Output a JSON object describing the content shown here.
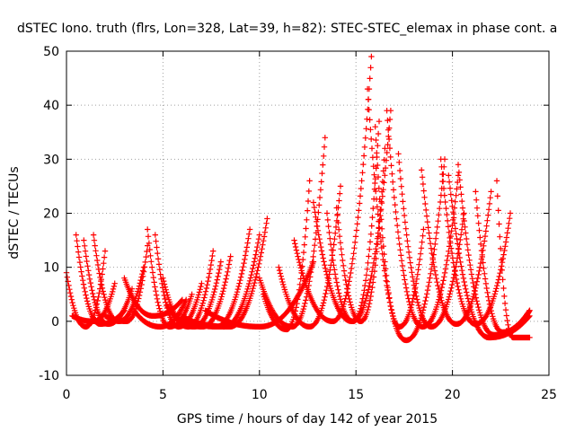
{
  "chart_data": {
    "type": "scatter",
    "title": "dSTEC Iono. truth (flrs, Lon=328, Lat=39, h=82): STEC-STEC_elemax in phase cont. a",
    "xlabel": "GPS time / hours of day 142 of year 2015",
    "ylabel": "dSTEC  / TECUs",
    "xlim": [
      0,
      25
    ],
    "ylim": [
      -10,
      50
    ],
    "xticks": [
      0,
      5,
      10,
      15,
      20,
      25
    ],
    "yticks": [
      -10,
      0,
      10,
      20,
      30,
      40,
      50
    ],
    "grid": true,
    "marker": "plus",
    "color": "#ff0000",
    "arcs": [
      {
        "start": 0.0,
        "end": 2.0,
        "start_value": 9,
        "end_value": 13,
        "min_value": -1
      },
      {
        "start": 0.5,
        "end": 3.0,
        "start_value": 16,
        "end_value": 2,
        "min_value": -0.5
      },
      {
        "start": 0.9,
        "end": 3.4,
        "start_value": 15,
        "end_value": 6,
        "min_value": -0.5
      },
      {
        "start": 1.4,
        "end": 4.0,
        "start_value": 16,
        "end_value": 10,
        "min_value": 0
      },
      {
        "start": 0.3,
        "end": 2.5,
        "start_value": 1,
        "end_value": 7,
        "min_value": 0
      },
      {
        "start": 2.0,
        "end": 4.2,
        "start_value": 1,
        "end_value": 14,
        "min_value": 0
      },
      {
        "start": 3.0,
        "end": 6.0,
        "start_value": 8,
        "end_value": 4,
        "min_value": 1
      },
      {
        "start": 4.2,
        "end": 6.5,
        "start_value": 17,
        "end_value": 5,
        "min_value": -1
      },
      {
        "start": 4.6,
        "end": 7.0,
        "start_value": 16,
        "end_value": 7,
        "min_value": -1
      },
      {
        "start": 3.5,
        "end": 6.2,
        "start_value": 2,
        "end_value": 4,
        "min_value": -1
      },
      {
        "start": 5.0,
        "end": 7.6,
        "start_value": 8,
        "end_value": 13,
        "min_value": -1
      },
      {
        "start": 5.2,
        "end": 8.0,
        "start_value": 3,
        "end_value": 11,
        "min_value": -1
      },
      {
        "start": 5.6,
        "end": 8.5,
        "start_value": 1,
        "end_value": 12,
        "min_value": -1
      },
      {
        "start": 6.0,
        "end": 9.5,
        "start_value": 1,
        "end_value": 17,
        "min_value": -1
      },
      {
        "start": 6.3,
        "end": 10.0,
        "start_value": 0,
        "end_value": 16,
        "min_value": -1
      },
      {
        "start": 6.5,
        "end": 10.4,
        "start_value": 0,
        "end_value": 19,
        "min_value": -1
      },
      {
        "start": 7.2,
        "end": 12.8,
        "start_value": 2,
        "end_value": 11,
        "min_value": -1
      },
      {
        "start": 10.0,
        "end": 13.4,
        "start_value": 8,
        "end_value": 34,
        "min_value": -1
      },
      {
        "start": 10.2,
        "end": 12.6,
        "start_value": 5,
        "end_value": 26,
        "min_value": -1.5
      },
      {
        "start": 11.0,
        "end": 14.2,
        "start_value": 10,
        "end_value": 25,
        "min_value": -1
      },
      {
        "start": 11.8,
        "end": 15.8,
        "start_value": 15,
        "end_value": 49,
        "min_value": 0
      },
      {
        "start": 12.8,
        "end": 16.8,
        "start_value": 22,
        "end_value": 39,
        "min_value": 0
      },
      {
        "start": 13.5,
        "end": 16.2,
        "start_value": 20,
        "end_value": 37,
        "min_value": 0
      },
      {
        "start": 14.0,
        "end": 16.5,
        "start_value": 21,
        "end_value": 32,
        "min_value": 0
      },
      {
        "start": 15.6,
        "end": 19.6,
        "start_value": 43,
        "end_value": 30,
        "min_value": -3.5
      },
      {
        "start": 16.0,
        "end": 18.5,
        "start_value": 36,
        "end_value": 17,
        "min_value": -1
      },
      {
        "start": 16.6,
        "end": 20.3,
        "start_value": 39,
        "end_value": 27,
        "min_value": -1
      },
      {
        "start": 17.2,
        "end": 20.6,
        "start_value": 31,
        "end_value": 20,
        "min_value": -1
      },
      {
        "start": 18.4,
        "end": 22.0,
        "start_value": 28,
        "end_value": 24,
        "min_value": -0.5
      },
      {
        "start": 19.4,
        "end": 23.0,
        "start_value": 30,
        "end_value": 20,
        "min_value": -0.5
      },
      {
        "start": 19.8,
        "end": 24.0,
        "start_value": 27,
        "end_value": 1,
        "min_value": -3
      },
      {
        "start": 20.3,
        "end": 24.0,
        "start_value": 29,
        "end_value": 2,
        "min_value": -2.5
      },
      {
        "start": 21.2,
        "end": 24.0,
        "start_value": 24,
        "end_value": 2,
        "min_value": -2
      },
      {
        "start": 22.3,
        "end": 24.0,
        "start_value": 26,
        "end_value": -3,
        "min_value": -3
      }
    ]
  }
}
